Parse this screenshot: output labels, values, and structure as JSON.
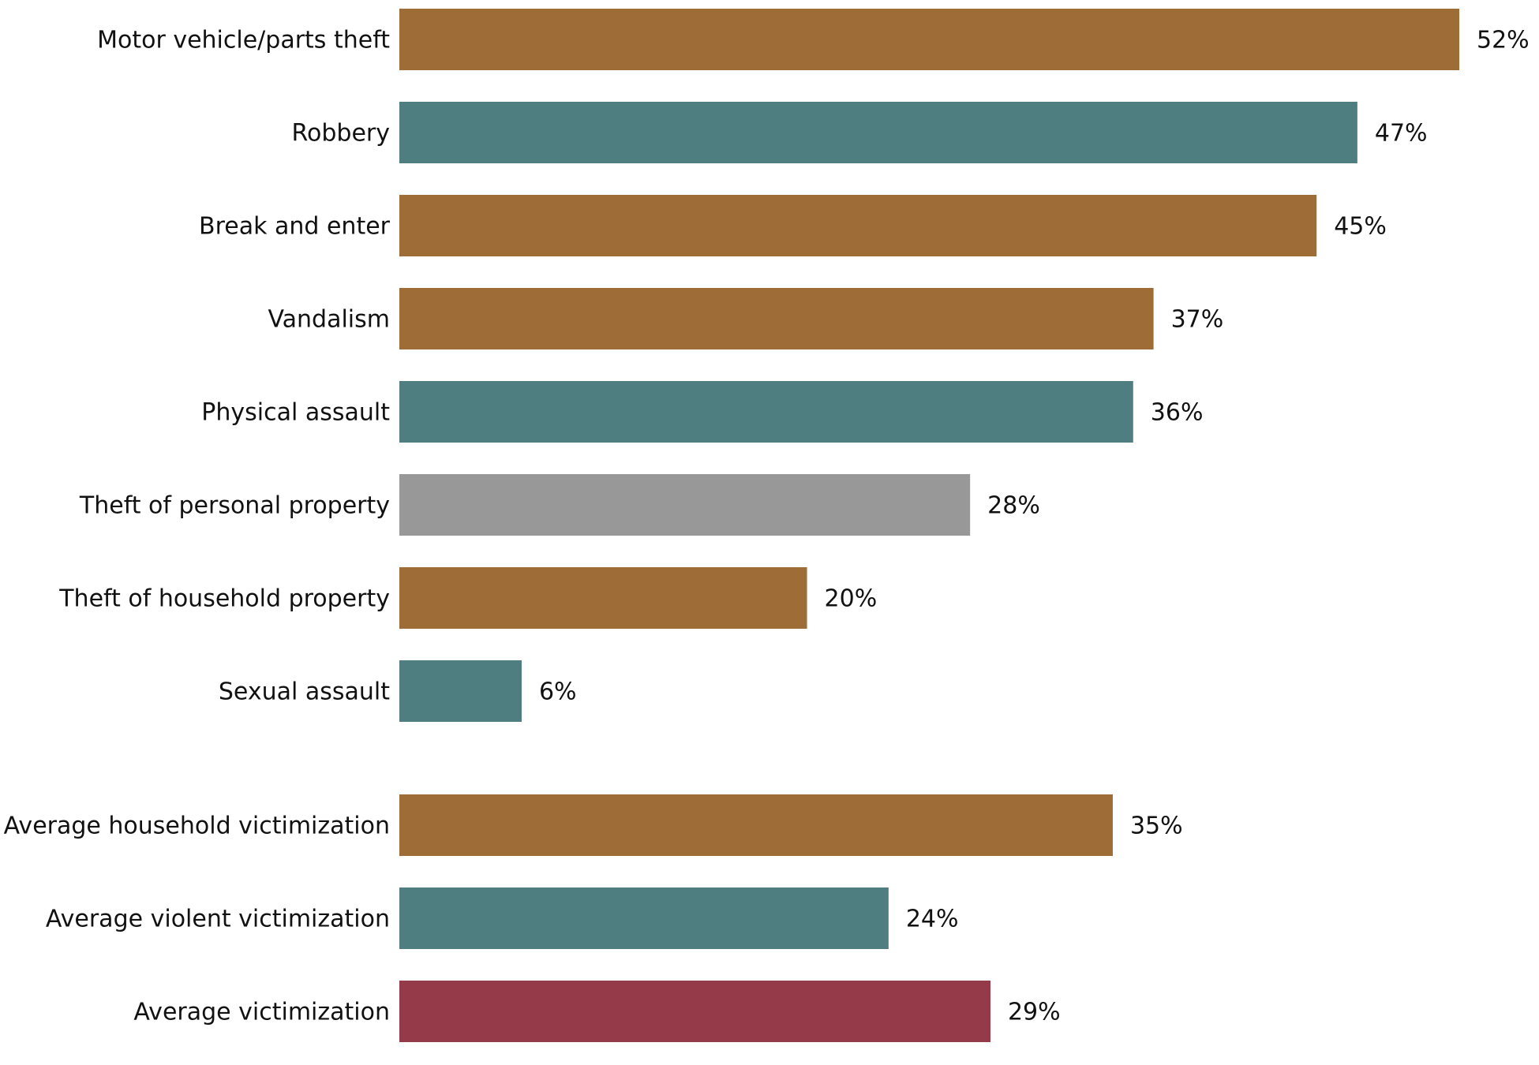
{
  "chart_data": {
    "type": "bar",
    "orientation": "horizontal",
    "categories": [
      "Motor vehicle/parts theft",
      "Robbery",
      "Break and enter",
      "Vandalism",
      "Physical assault",
      "Theft of personal property",
      "Theft of household property",
      "Sexual assault",
      "Average household victimization",
      "Average violent victimization",
      "Average victimization"
    ],
    "values": [
      52,
      47,
      45,
      37,
      36,
      28,
      20,
      6,
      35,
      24,
      29
    ],
    "value_labels": [
      "52%",
      "47%",
      "45%",
      "37%",
      "36%",
      "28%",
      "20%",
      "6%",
      "35%",
      "24%",
      "29%"
    ],
    "colors": [
      "#9e6c37",
      "#4e7e80",
      "#9e6c37",
      "#9e6c37",
      "#4e7e80",
      "#999898",
      "#9e6c37",
      "#4e7e80",
      "#9e6c37",
      "#4e7e80",
      "#943a49"
    ],
    "grid": false
  }
}
